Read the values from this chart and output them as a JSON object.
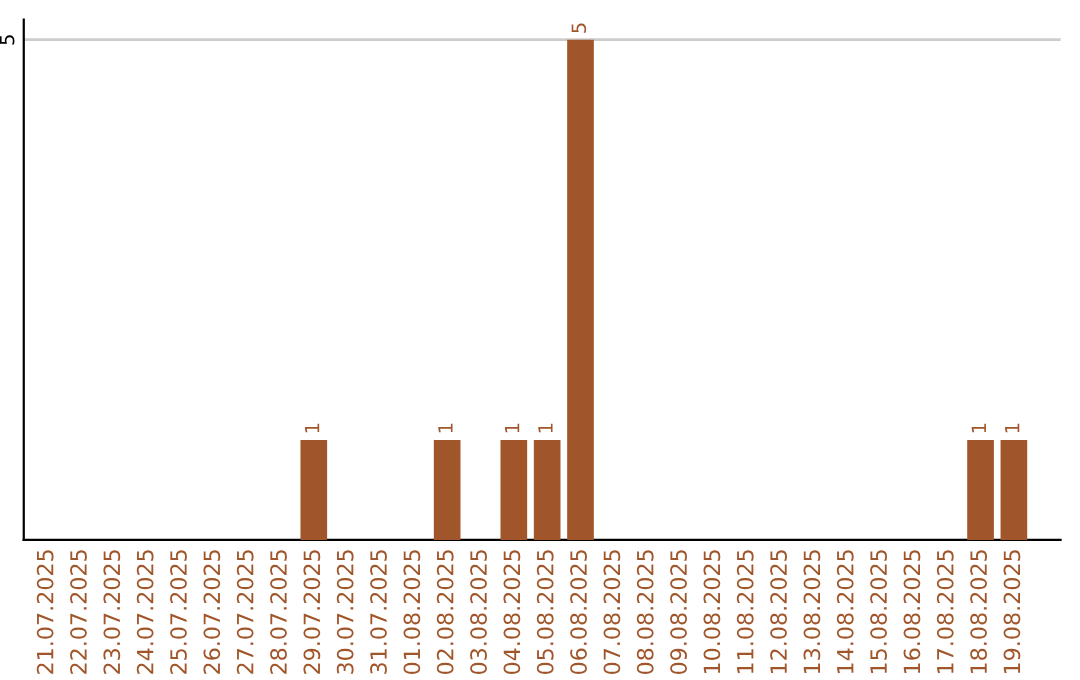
{
  "chart_data": {
    "type": "bar",
    "categories": [
      "21.07.2025",
      "22.07.2025",
      "23.07.2025",
      "24.07.2025",
      "25.07.2025",
      "26.07.2025",
      "27.07.2025",
      "28.07.2025",
      "29.07.2025",
      "30.07.2025",
      "31.07.2025",
      "01.08.2025",
      "02.08.2025",
      "03.08.2025",
      "04.08.2025",
      "05.08.2025",
      "06.08.2025",
      "07.08.2025",
      "08.08.2025",
      "09.08.2025",
      "10.08.2025",
      "11.08.2025",
      "12.08.2025",
      "13.08.2025",
      "14.08.2025",
      "15.08.2025",
      "16.08.2025",
      "17.08.2025",
      "18.08.2025",
      "19.08.2025"
    ],
    "values": [
      0,
      0,
      0,
      0,
      0,
      0,
      0,
      0,
      1,
      0,
      0,
      0,
      1,
      0,
      1,
      1,
      5,
      0,
      0,
      0,
      0,
      0,
      0,
      0,
      0,
      0,
      0,
      0,
      1,
      1
    ],
    "value_labels": [
      null,
      null,
      null,
      null,
      null,
      null,
      null,
      null,
      "1",
      null,
      null,
      null,
      "1",
      null,
      "1",
      "1",
      "5",
      null,
      null,
      null,
      null,
      null,
      null,
      null,
      null,
      null,
      null,
      null,
      "1",
      "1"
    ],
    "color": "#a0562a",
    "ylim": [
      0,
      5.2
    ],
    "yticks": [
      5
    ],
    "grid": "y"
  }
}
